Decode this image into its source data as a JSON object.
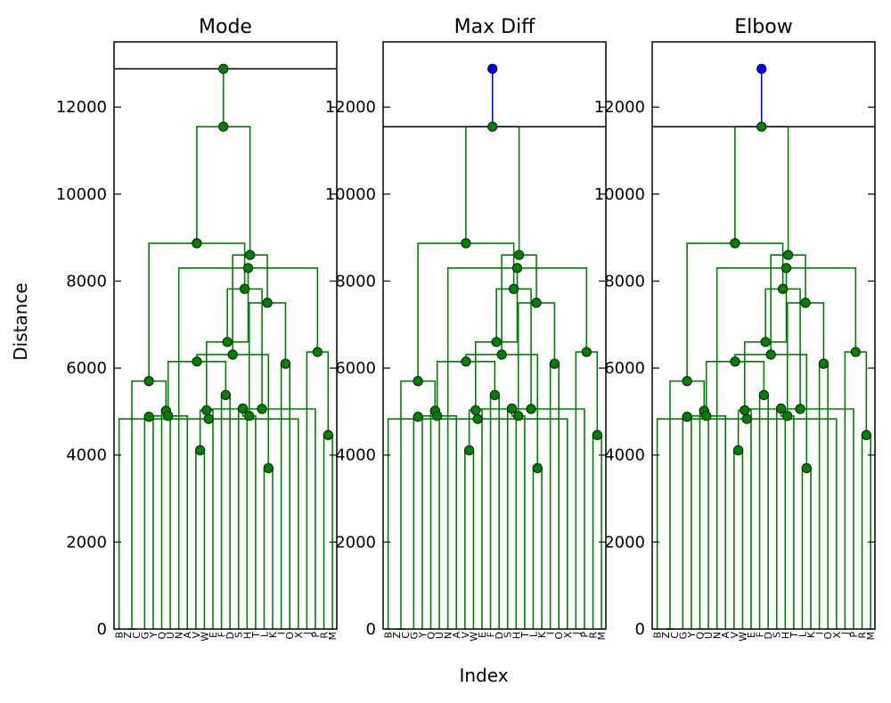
{
  "figure": {
    "ylabel": "Distance",
    "xlabel": "Index"
  },
  "chart_data": {
    "type": "dendrogram",
    "ylim": [
      0,
      13500
    ],
    "yticks": [
      0,
      2000,
      4000,
      6000,
      8000,
      10000,
      12000
    ],
    "leaves": [
      "B",
      "Z",
      "C",
      "G",
      "Y",
      "Q",
      "U",
      "N",
      "A",
      "V",
      "W",
      "E",
      "F",
      "D",
      "S",
      "H",
      "T",
      "L",
      "K",
      "I",
      "O",
      "X",
      "J",
      "P",
      "R",
      "M"
    ],
    "colors": {
      "cluster": "#008000",
      "above": "#0000ff",
      "cut_line": "#000000",
      "frame": "#000000"
    },
    "links": [
      {
        "a": 1,
        "b": 2,
        "h": 0,
        "marker": false
      },
      {
        "a": 3,
        "b": 4,
        "h": 4880,
        "marker": true
      },
      {
        "a": 5,
        "b": 6,
        "h": 5020,
        "marker": true
      },
      {
        "a": 9,
        "b": 10,
        "h": 4110,
        "marker": true
      },
      {
        "a": 8,
        "b": 27,
        "h": 4900,
        "marker": true
      },
      {
        "a": 12,
        "b": 13,
        "h": 5380,
        "marker": true
      },
      {
        "a": 11,
        "b": 29,
        "h": 5030,
        "marker": true
      },
      {
        "a": 14,
        "b": 15,
        "h": 5070,
        "marker": true
      },
      {
        "a": 17,
        "b": 18,
        "h": 3700,
        "marker": true
      },
      {
        "a": 16,
        "b": 33,
        "h": 4900,
        "marker": true
      },
      {
        "a": 19,
        "b": 20,
        "h": 6100,
        "marker": true
      },
      {
        "a": 21,
        "b": 0,
        "h": 4830,
        "marker": true
      },
      {
        "a": 24,
        "b": 25,
        "h": 4460,
        "marker": true
      },
      {
        "a": 23,
        "b": 37,
        "h": 5060,
        "marker": true
      },
      {
        "a": 22,
        "b": 38,
        "h": 6370,
        "marker": true
      },
      {
        "a": 26,
        "b": 28,
        "h": 5700,
        "marker": true
      },
      {
        "a": 7,
        "b": 40,
        "h": 8300,
        "marker": true
      },
      {
        "a": 30,
        "b": 31,
        "h": 6150,
        "marker": true
      },
      {
        "a": 42,
        "b": 32,
        "h": 6600,
        "marker": true
      },
      {
        "a": 43,
        "b": 34,
        "h": 6310,
        "marker": true
      },
      {
        "a": 35,
        "b": 36,
        "h": 7500,
        "marker": true
      },
      {
        "a": 44,
        "b": 39,
        "h": 7820,
        "marker": true
      },
      {
        "a": 45,
        "b": 46,
        "h": 8600,
        "marker": true
      },
      {
        "a": 41,
        "b": 47,
        "h": 8870,
        "marker": true
      },
      {
        "a": 48,
        "b": 49,
        "h": 11550,
        "marker": true
      },
      {
        "a": 50,
        "b": 50,
        "h": 12880,
        "marker": true
      }
    ],
    "panels": [
      {
        "title": "Mode",
        "threshold": 12880
      },
      {
        "title": "Max Diff",
        "threshold": 11550
      },
      {
        "title": "Elbow",
        "threshold": 11550
      }
    ]
  }
}
